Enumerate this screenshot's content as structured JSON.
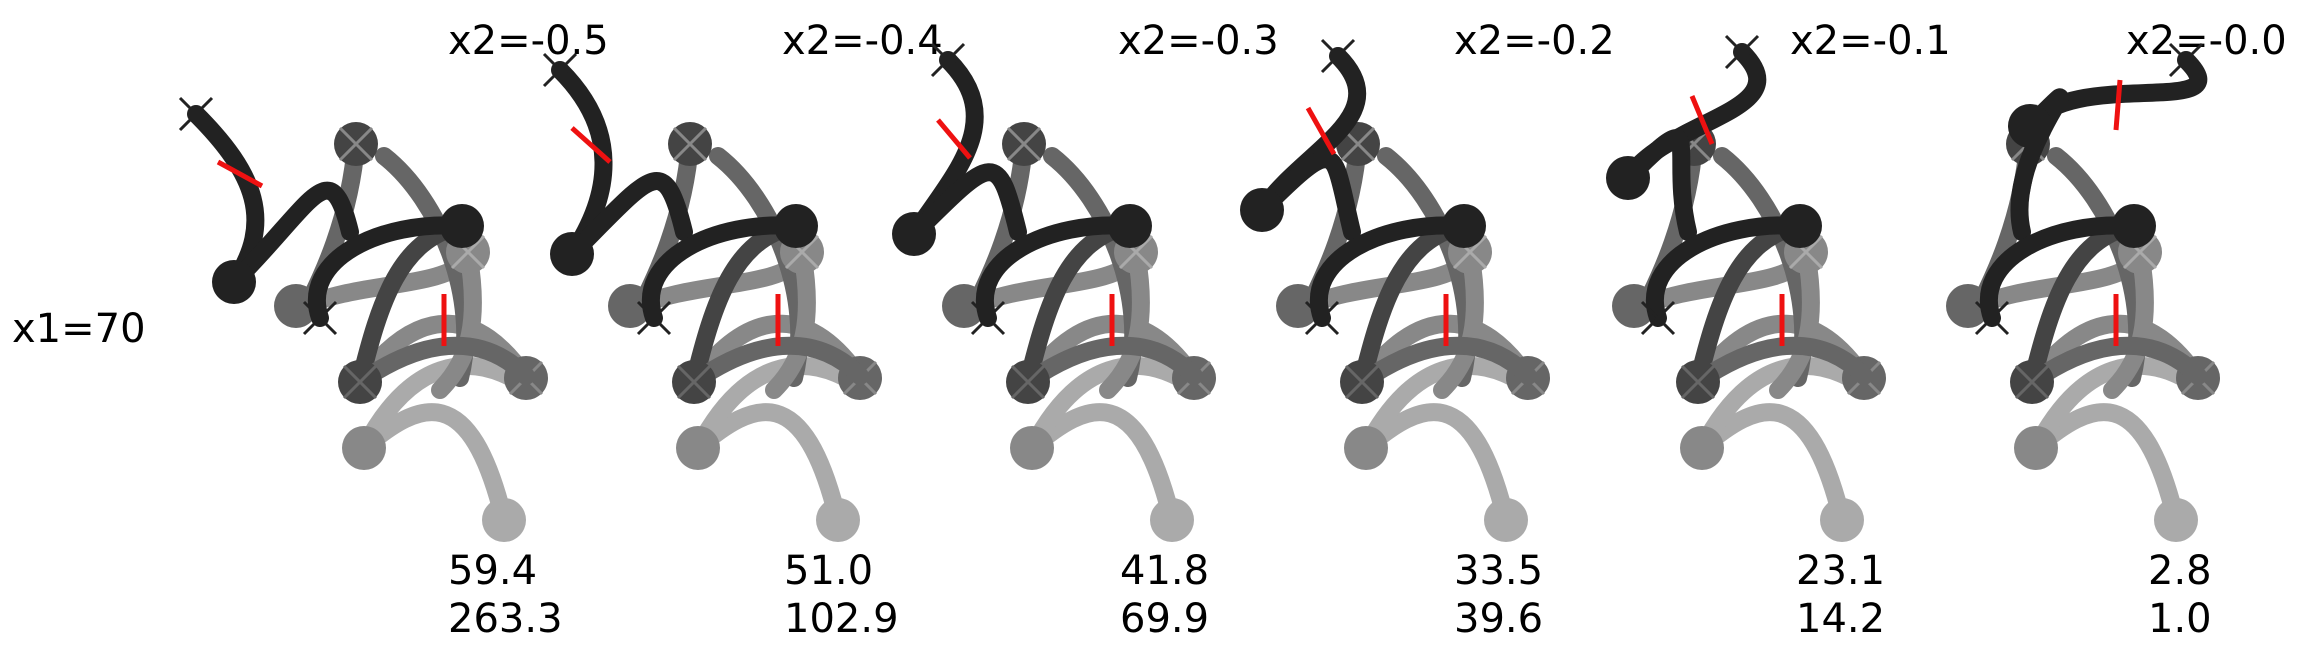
{
  "row_label": "x1=70",
  "panels": [
    {
      "id": "p1",
      "title": "x2=-0.5",
      "value_top": "59.4",
      "value_bottom": "263.3"
    },
    {
      "id": "p2",
      "title": "x2=-0.4",
      "value_top": "51.0",
      "value_bottom": "102.9"
    },
    {
      "id": "p3",
      "title": "x2=-0.3",
      "value_top": "41.8",
      "value_bottom": "69.9"
    },
    {
      "id": "p4",
      "title": "x2=-0.2",
      "value_top": "33.5",
      "value_bottom": "39.6"
    },
    {
      "id": "p5",
      "title": "x2=-0.1",
      "value_top": "23.1",
      "value_bottom": "14.2"
    },
    {
      "id": "p6",
      "title": "x2=-0.0",
      "value_top": "2.8",
      "value_bottom": "1.0"
    }
  ],
  "colors": {
    "edge_dark": "#222222",
    "edge_mid_dark": "#444444",
    "edge_mid": "#666666",
    "edge_light": "#888888",
    "edge_lighter": "#aaaaaa",
    "marker": "#ee1111",
    "text": "#000000"
  }
}
